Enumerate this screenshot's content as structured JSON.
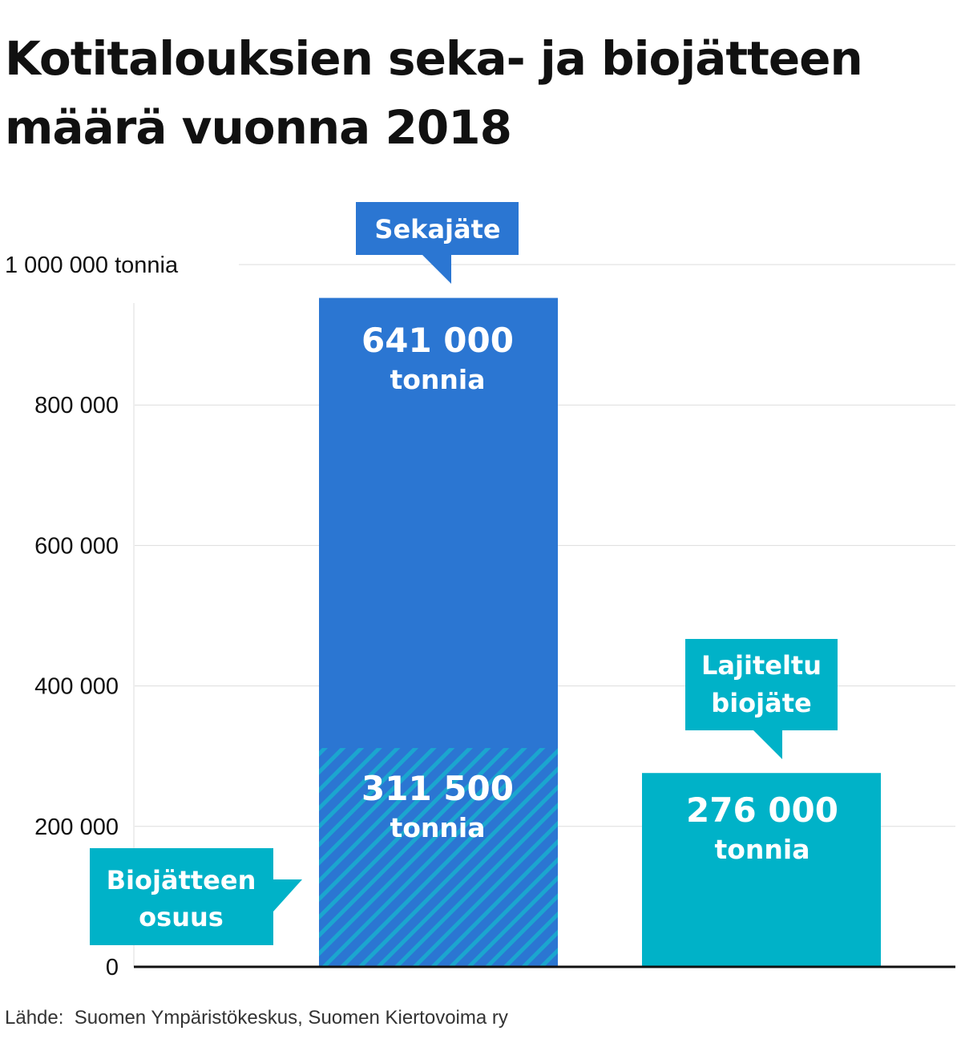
{
  "title": "Kotitalouksien seka- ja biojätteen määrä vuonna 2018",
  "source": "Lähde:  Suomen Ympäristökeskus, Suomen Kiertovoima ry",
  "colors": {
    "sekajate": "#2B76D2",
    "biojate": "#00B2C8",
    "stripe": "#1BA6CF",
    "gridline": "#dddddd",
    "axis": "#111111"
  },
  "chart_data": {
    "type": "bar",
    "ylim": [
      0,
      1000000
    ],
    "y_ticks": [
      {
        "value": 0,
        "label": "0"
      },
      {
        "value": 200000,
        "label": "200 000"
      },
      {
        "value": 400000,
        "label": "400 000"
      },
      {
        "value": 600000,
        "label": "600 000"
      },
      {
        "value": 800000,
        "label": "800 000"
      },
      {
        "value": 1000000,
        "label": "1 000 000 tonnia"
      }
    ],
    "bars": [
      {
        "id": "sekajate",
        "total": 952500,
        "label_value": "641 000",
        "label_unit": "tonnia",
        "callout": [
          "Sekajäte"
        ],
        "segments": [
          {
            "id": "biojatteen-osuus",
            "value": 311500,
            "label_value": "311 500",
            "label_unit": "tonnia",
            "pattern": "striped"
          }
        ]
      },
      {
        "id": "lajiteltu-biojate",
        "total": 276000,
        "label_value": "276 000",
        "label_unit": "tonnia",
        "callout": [
          "Lajiteltu",
          "biojäte"
        ]
      }
    ],
    "annotations": [
      {
        "id": "biojatteen-osuus-callout",
        "lines": [
          "Biojätteen",
          "osuus"
        ]
      }
    ]
  }
}
